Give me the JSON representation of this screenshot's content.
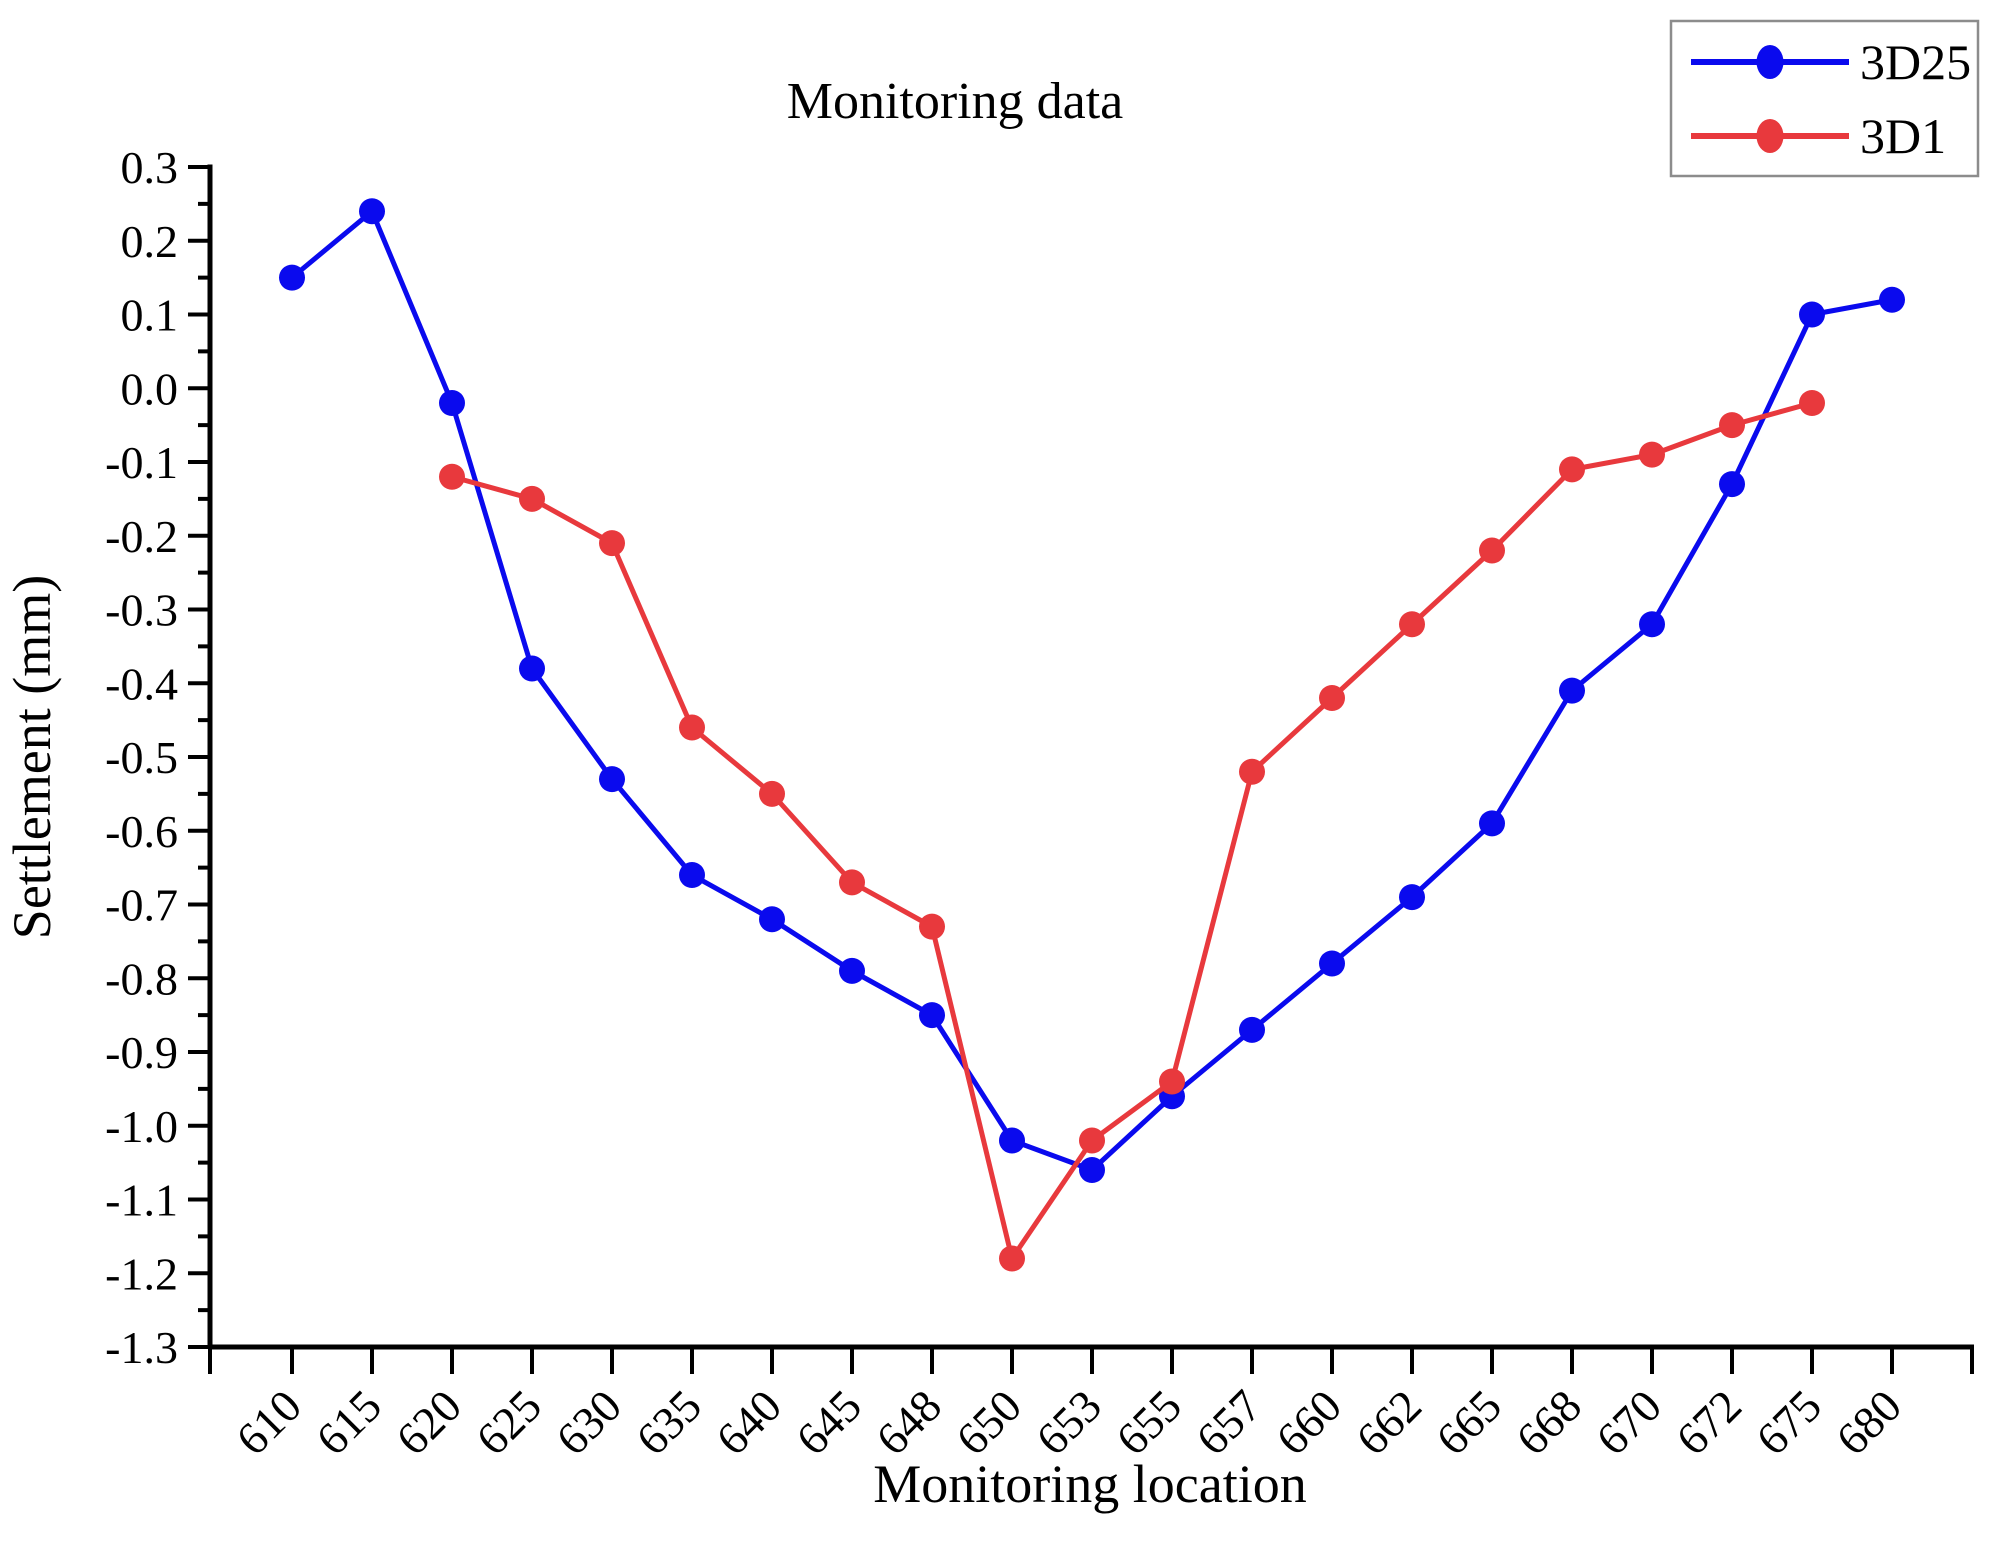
{
  "figure": {
    "title": "Monitoring data",
    "x_axis_title": "Monitoring location",
    "y_axis_title": "Settlement (mm)"
  },
  "legend": {
    "position": "top-right",
    "items": [
      {
        "label": "3D25",
        "color": "#0a0aee"
      },
      {
        "label": "3D1",
        "color": "#e8393d"
      }
    ]
  },
  "chart_data": {
    "type": "line",
    "title": "Monitoring data",
    "xlabel": "Monitoring location",
    "ylabel": "Settlement (mm)",
    "categories": [
      "610",
      "615",
      "620",
      "625",
      "630",
      "635",
      "640",
      "645",
      "648",
      "650",
      "653",
      "655",
      "657",
      "660",
      "662",
      "665",
      "668",
      "670",
      "672",
      "675",
      "680"
    ],
    "series": [
      {
        "name": "3D25",
        "color": "#0a0aee",
        "values": [
          0.15,
          0.24,
          -0.02,
          -0.38,
          -0.53,
          -0.66,
          -0.72,
          -0.79,
          -0.85,
          -1.02,
          -1.06,
          -0.96,
          -0.87,
          -0.78,
          -0.69,
          -0.59,
          -0.41,
          -0.32,
          -0.13,
          0.1,
          0.12
        ]
      },
      {
        "name": "3D1",
        "color": "#e8393d",
        "values": [
          null,
          null,
          -0.12,
          -0.15,
          -0.21,
          -0.46,
          -0.55,
          -0.67,
          -0.73,
          -1.18,
          -1.02,
          -0.94,
          -0.52,
          -0.42,
          -0.32,
          -0.22,
          -0.11,
          -0.09,
          -0.05,
          -0.02,
          null
        ]
      }
    ],
    "ylim": [
      -1.3,
      0.3
    ],
    "y_tick_step": 0.1,
    "y_minor_tick_step": 0.05,
    "x_tick_label_rotation": -45,
    "grid": false,
    "legend_position": "top-right",
    "marker": "circle",
    "line_width": 5
  }
}
